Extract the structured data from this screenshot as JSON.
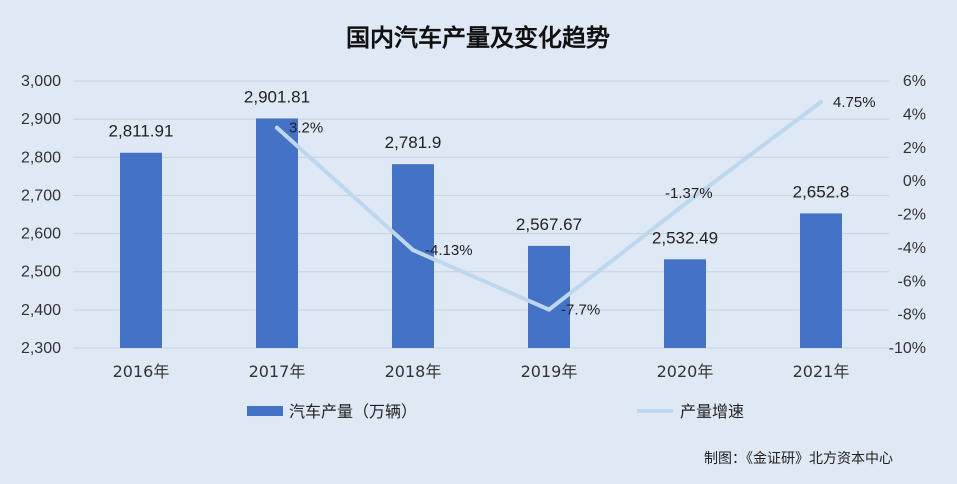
{
  "title": "国内汽车产量及变化趋势",
  "source_note": "制图：《金证研》北方资本中心",
  "colors": {
    "background": "#dfe8f5",
    "bar": "#4472c4",
    "line": "#bdd7ee",
    "grid": "#c8d0dc"
  },
  "chart_data": {
    "type": "bar",
    "categories": [
      "2016年",
      "2017年",
      "2018年",
      "2019年",
      "2020年",
      "2021年"
    ],
    "series": [
      {
        "name": "汽车产量（万辆）",
        "type": "bar",
        "axis": "left",
        "values": [
          2811.91,
          2901.81,
          2781.9,
          2567.67,
          2532.49,
          2652.8
        ],
        "labels": [
          "2,811.91",
          "2,901.81",
          "2,781.9",
          "2,567.67",
          "2,532.49",
          "2,652.8"
        ]
      },
      {
        "name": "产量增速",
        "type": "line",
        "axis": "right",
        "values": [
          null,
          3.2,
          -4.13,
          -7.7,
          -1.37,
          4.75
        ],
        "labels": [
          "",
          "3.2%",
          "-4.13%",
          "-7.7%",
          "-1.37%",
          "4.75%"
        ]
      }
    ],
    "y_left": {
      "ylim": [
        2300,
        3000
      ],
      "ticks": [
        3000,
        2900,
        2800,
        2700,
        2600,
        2500,
        2400,
        2300
      ],
      "tick_labels": [
        "3,000",
        "2,900",
        "2,800",
        "2,700",
        "2,600",
        "2,500",
        "2,400",
        "2,300"
      ]
    },
    "y_right": {
      "ylim": [
        -10,
        6
      ],
      "ticks": [
        6,
        4,
        2,
        0,
        -2,
        -4,
        -6,
        -8,
        -10
      ],
      "tick_labels": [
        "6%",
        "4%",
        "2%",
        "0%",
        "-2%",
        "-4%",
        "-6%",
        "-8%",
        "-10%"
      ]
    },
    "grid": true,
    "legend": "bottom"
  }
}
